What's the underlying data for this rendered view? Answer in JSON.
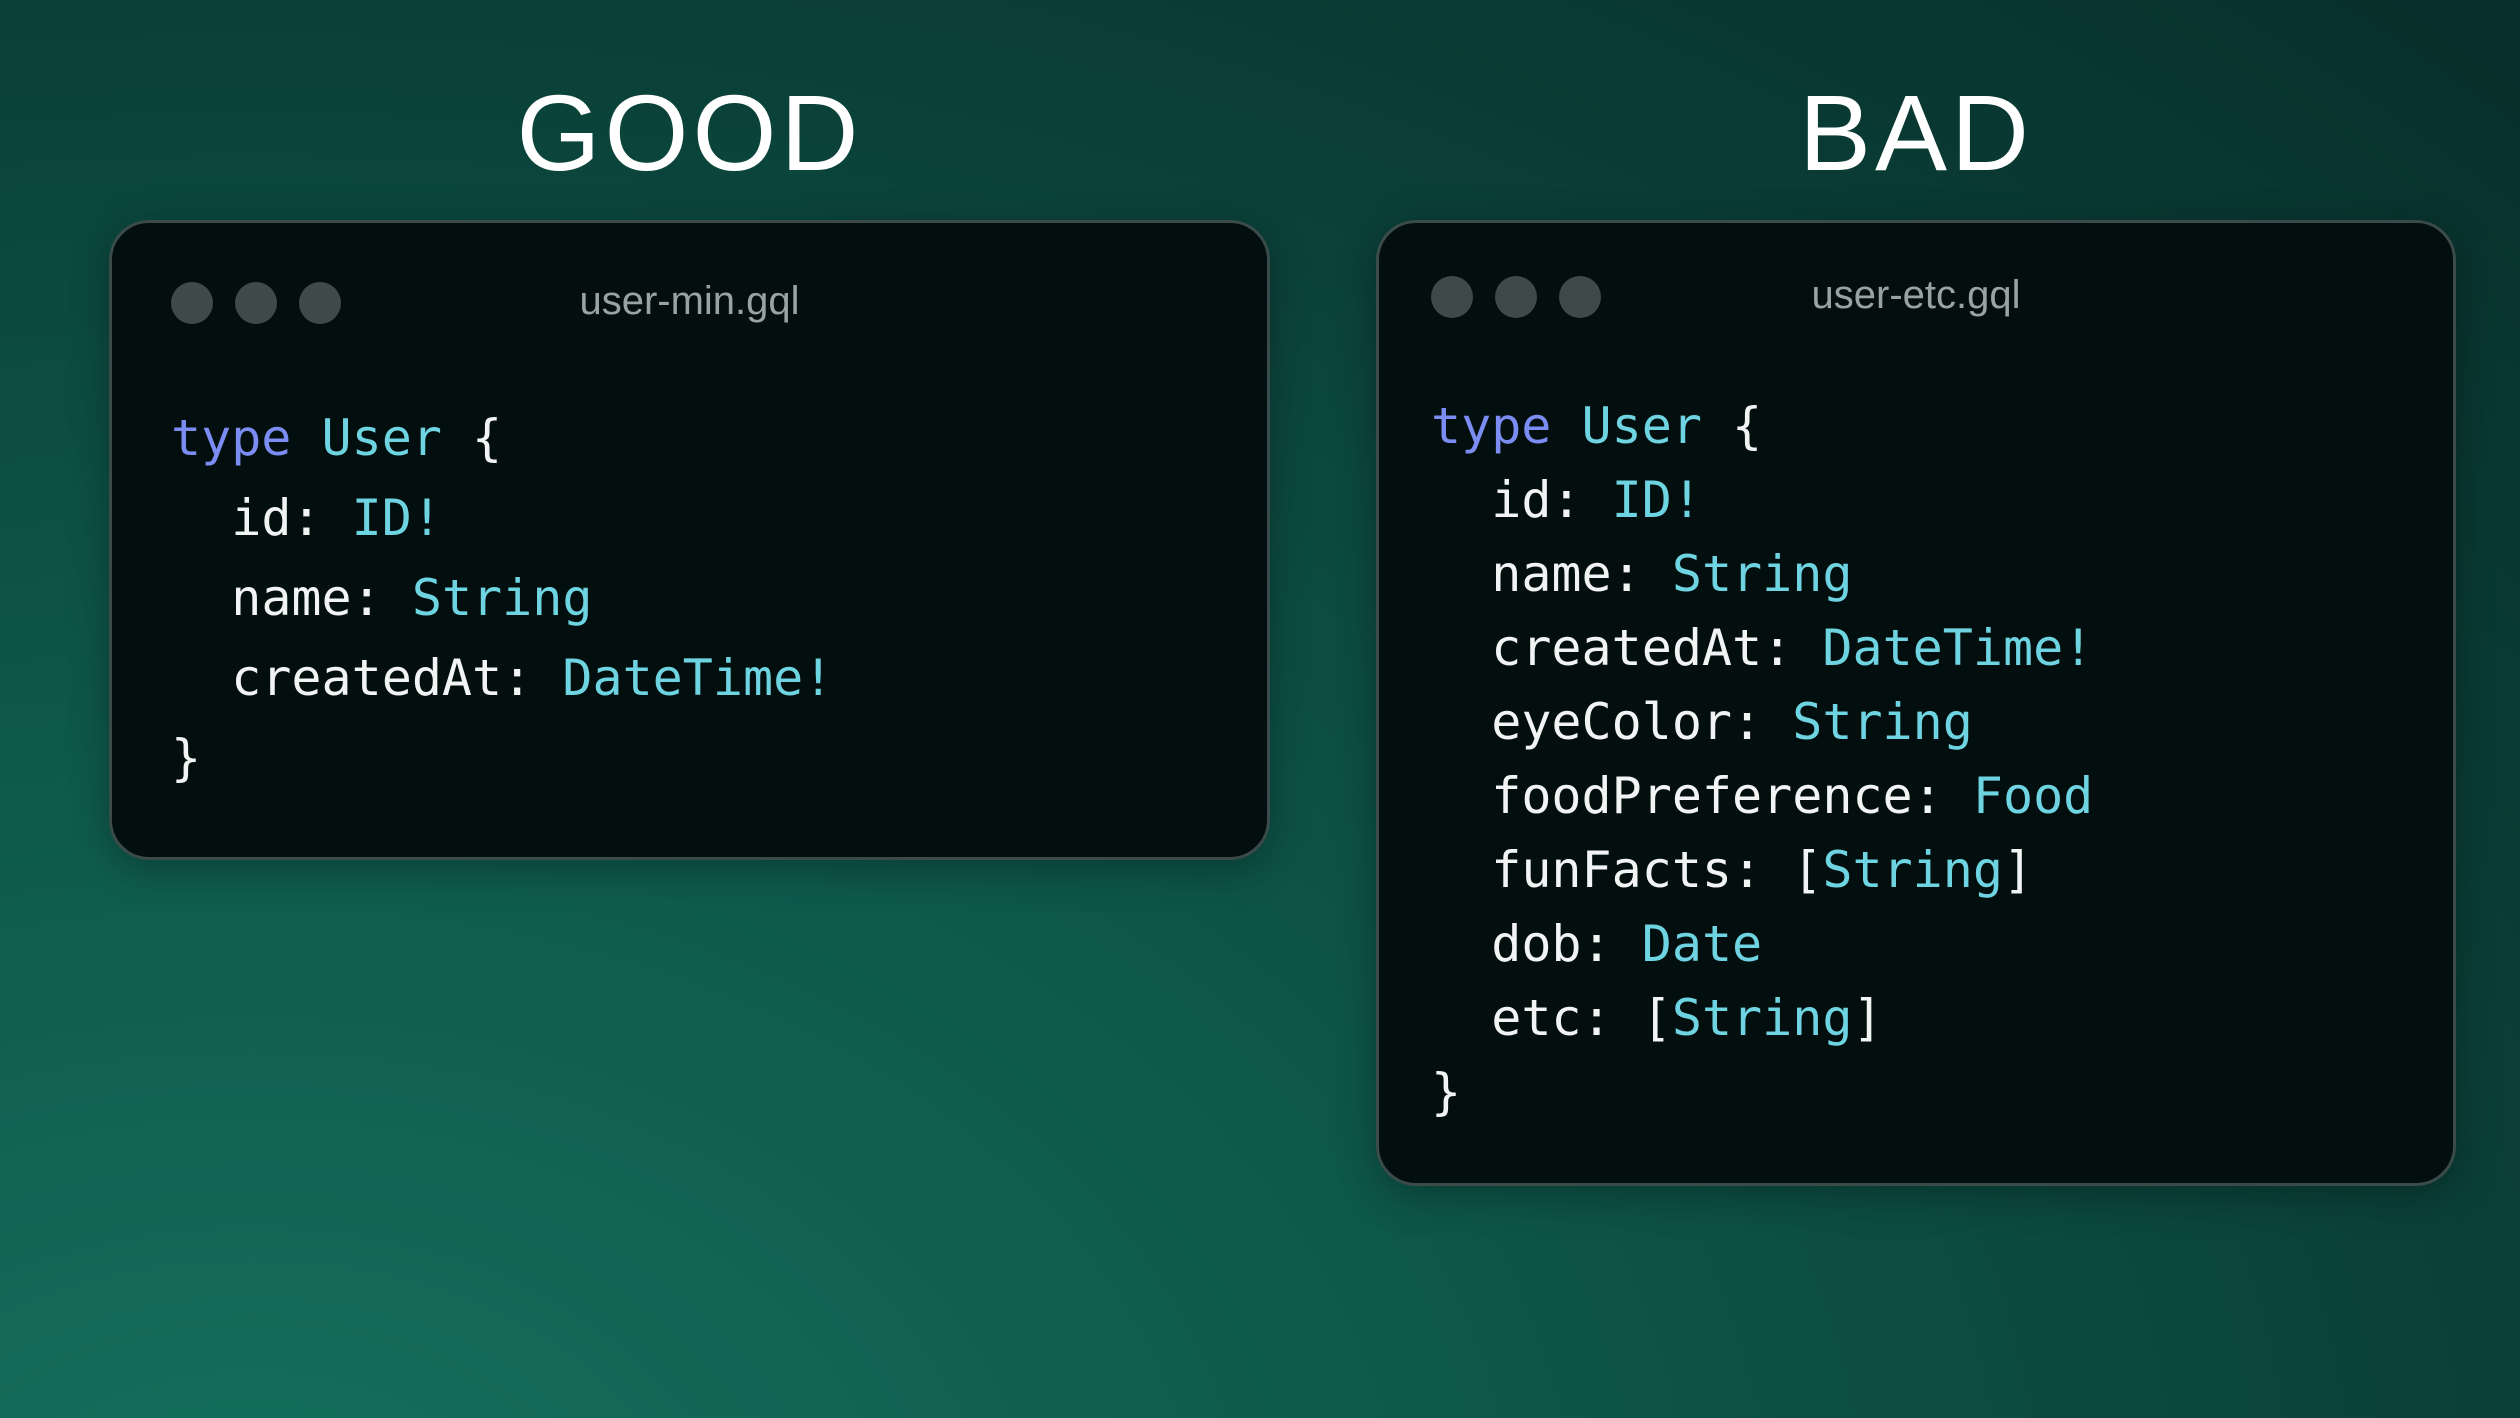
{
  "colors": {
    "keyword": "#7b8cf2",
    "type": "#6fd4e2",
    "text": "#f2f4f4",
    "window_bg": "#020f0e"
  },
  "good": {
    "heading": "GOOD",
    "filename": "user-min.gql",
    "lines": [
      {
        "indent": "",
        "parts": [
          {
            "t": "type",
            "c": "kw"
          },
          {
            "t": " "
          },
          {
            "t": "User",
            "c": "ty"
          },
          {
            "t": " {"
          }
        ]
      },
      {
        "indent": "  ",
        "parts": [
          {
            "t": "id: "
          },
          {
            "t": "ID!",
            "c": "ty"
          }
        ]
      },
      {
        "indent": "  ",
        "parts": [
          {
            "t": "name: "
          },
          {
            "t": "String",
            "c": "ty"
          }
        ]
      },
      {
        "indent": "  ",
        "parts": [
          {
            "t": "createdAt: "
          },
          {
            "t": "DateTime!",
            "c": "ty"
          }
        ]
      },
      {
        "indent": "",
        "parts": [
          {
            "t": "}"
          }
        ]
      }
    ]
  },
  "bad": {
    "heading": "BAD",
    "filename": "user-etc.gql",
    "lines": [
      {
        "indent": "",
        "parts": [
          {
            "t": "type",
            "c": "kw"
          },
          {
            "t": " "
          },
          {
            "t": "User",
            "c": "ty"
          },
          {
            "t": " {"
          }
        ]
      },
      {
        "indent": "  ",
        "parts": [
          {
            "t": "id: "
          },
          {
            "t": "ID!",
            "c": "ty"
          }
        ]
      },
      {
        "indent": "  ",
        "parts": [
          {
            "t": "name: "
          },
          {
            "t": "String",
            "c": "ty"
          }
        ]
      },
      {
        "indent": "  ",
        "parts": [
          {
            "t": "createdAt: "
          },
          {
            "t": "DateTime!",
            "c": "ty"
          }
        ]
      },
      {
        "indent": "  ",
        "parts": [
          {
            "t": "eyeColor: "
          },
          {
            "t": "String",
            "c": "ty"
          }
        ]
      },
      {
        "indent": "  ",
        "parts": [
          {
            "t": "foodPreference: "
          },
          {
            "t": "Food",
            "c": "ty"
          }
        ]
      },
      {
        "indent": "  ",
        "parts": [
          {
            "t": "funFacts: ["
          },
          {
            "t": "String",
            "c": "ty"
          },
          {
            "t": "]"
          }
        ]
      },
      {
        "indent": "  ",
        "parts": [
          {
            "t": "dob: "
          },
          {
            "t": "Date",
            "c": "ty"
          }
        ]
      },
      {
        "indent": "  ",
        "parts": [
          {
            "t": "etc: ["
          },
          {
            "t": "String",
            "c": "ty"
          },
          {
            "t": "]"
          }
        ]
      },
      {
        "indent": "",
        "parts": [
          {
            "t": "}"
          }
        ]
      }
    ]
  }
}
